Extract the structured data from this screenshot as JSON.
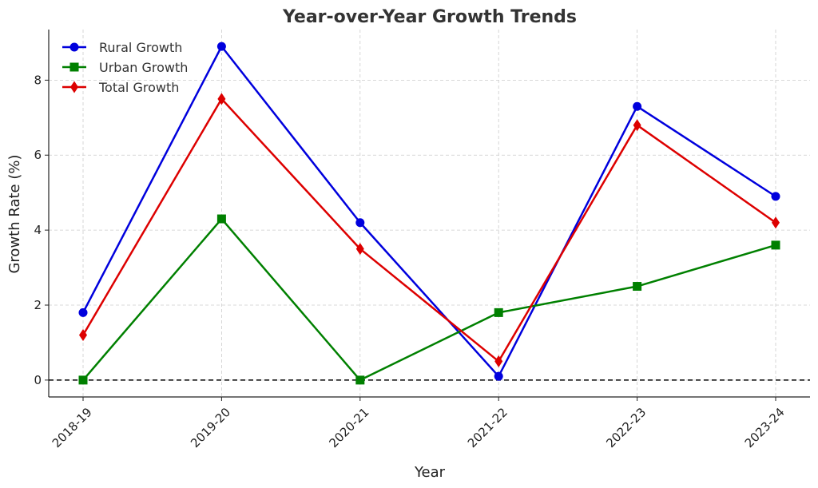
{
  "chart_data": {
    "type": "line",
    "title": "Year-over-Year Growth Trends",
    "xlabel": "Year",
    "ylabel": "Growth Rate (%)",
    "categories": [
      "2018-19",
      "2019-20",
      "2020-21",
      "2021-22",
      "2022-23",
      "2023-24"
    ],
    "ylim": [
      -0.45,
      9.35
    ],
    "yticks": [
      0,
      2,
      4,
      6,
      8
    ],
    "grid": true,
    "legend_position": "top-left",
    "reference_line": {
      "y": 0,
      "style": "dashed",
      "color": "#000000"
    },
    "series": [
      {
        "name": "Rural Growth",
        "values": [
          1.8,
          8.9,
          4.2,
          0.1,
          7.3,
          4.9
        ],
        "color": "#0000dd",
        "marker": "circle"
      },
      {
        "name": "Urban Growth",
        "values": [
          0.0,
          4.3,
          0.0,
          1.8,
          2.5,
          3.6
        ],
        "color": "#008000",
        "marker": "square"
      },
      {
        "name": "Total Growth",
        "values": [
          1.2,
          7.5,
          3.5,
          0.5,
          6.8,
          4.2
        ],
        "color": "#dd0000",
        "marker": "diamond"
      }
    ]
  }
}
